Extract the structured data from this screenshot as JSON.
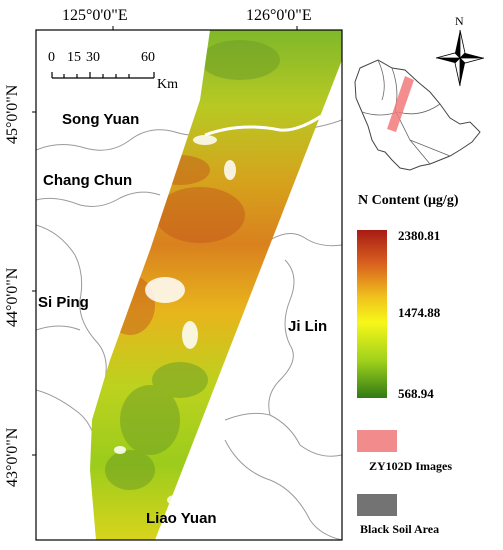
{
  "map": {
    "top_coords": [
      "125°0'0\"E",
      "126°0'0\"E"
    ],
    "left_coords": [
      "45°0'0\"N",
      "44°0'0\"N",
      "43°0'0\"N"
    ],
    "scale_labels": [
      "0",
      "15",
      "30",
      "60"
    ],
    "scale_unit": "Km",
    "cities": [
      "Song Yuan",
      "Chang Chun",
      "Si Ping",
      "Ji Lin",
      "Liao Yuan"
    ],
    "north_label": "N"
  },
  "legend": {
    "title": "N Content (μg/g)",
    "max": "2380.81",
    "mid": "1474.88",
    "min": "568.94",
    "items": [
      {
        "label": "ZY102D Images",
        "color": "#f28b8b"
      },
      {
        "label": "Black Soil Area",
        "color": "#737373"
      }
    ],
    "gradient": [
      "#a81b14",
      "#d9611f",
      "#f0c21c",
      "#f7f719",
      "#9ed11a",
      "#2f7a16"
    ]
  }
}
